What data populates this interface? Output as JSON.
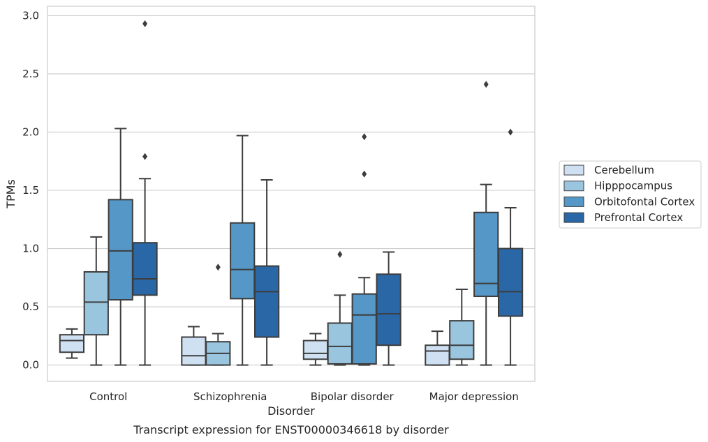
{
  "chart_data": {
    "type": "box",
    "caption": "Transcript expression for ENST00000346618 by disorder",
    "xlabel": "Disorder",
    "ylabel": "TPMs",
    "ylim": [
      -0.14,
      3.08
    ],
    "yticks": [
      0.0,
      0.5,
      1.0,
      1.5,
      2.0,
      2.5,
      3.0
    ],
    "ytick_labels": [
      "0.0",
      "0.5",
      "1.0",
      "1.5",
      "2.0",
      "2.5",
      "3.0"
    ],
    "grid": "horizontal",
    "legend_position": "right",
    "categories": [
      "Control",
      "Schizophrenia",
      "Bipolar disorder",
      "Major depression"
    ],
    "series": [
      {
        "name": "Cerebellum",
        "color": "#cfe0f2",
        "boxes": [
          {
            "whislo": 0.06,
            "q1": 0.11,
            "med": 0.21,
            "q3": 0.26,
            "whishi": 0.31,
            "fliers": []
          },
          {
            "whislo": 0.0,
            "q1": 0.0,
            "med": 0.08,
            "q3": 0.24,
            "whishi": 0.33,
            "fliers": []
          },
          {
            "whislo": 0.0,
            "q1": 0.05,
            "med": 0.1,
            "q3": 0.21,
            "whishi": 0.27,
            "fliers": []
          },
          {
            "whislo": 0.0,
            "q1": 0.0,
            "med": 0.12,
            "q3": 0.17,
            "whishi": 0.29,
            "fliers": []
          }
        ]
      },
      {
        "name": "Hipppocampus",
        "color": "#9ac5df",
        "boxes": [
          {
            "whislo": 0.0,
            "q1": 0.26,
            "med": 0.54,
            "q3": 0.8,
            "whishi": 1.1,
            "fliers": []
          },
          {
            "whislo": 0.0,
            "q1": 0.0,
            "med": 0.1,
            "q3": 0.2,
            "whishi": 0.27,
            "fliers": [
              0.84
            ]
          },
          {
            "whislo": 0.0,
            "q1": 0.01,
            "med": 0.16,
            "q3": 0.36,
            "whishi": 0.6,
            "fliers": [
              0.95
            ]
          },
          {
            "whislo": 0.0,
            "q1": 0.05,
            "med": 0.17,
            "q3": 0.38,
            "whishi": 0.65,
            "fliers": []
          }
        ]
      },
      {
        "name": "Orbitofontal Cortex",
        "color": "#5598c8",
        "boxes": [
          {
            "whislo": 0.0,
            "q1": 0.56,
            "med": 0.98,
            "q3": 1.42,
            "whishi": 2.03,
            "fliers": []
          },
          {
            "whislo": 0.0,
            "q1": 0.57,
            "med": 0.82,
            "q3": 1.22,
            "whishi": 1.97,
            "fliers": []
          },
          {
            "whislo": 0.0,
            "q1": 0.01,
            "med": 0.43,
            "q3": 0.61,
            "whishi": 0.75,
            "fliers": [
              1.64,
              1.96
            ]
          },
          {
            "whislo": 0.0,
            "q1": 0.59,
            "med": 0.7,
            "q3": 1.31,
            "whishi": 1.55,
            "fliers": [
              2.41
            ]
          }
        ]
      },
      {
        "name": "Prefrontal Cortex",
        "color": "#2a67a6",
        "boxes": [
          {
            "whislo": 0.0,
            "q1": 0.6,
            "med": 0.74,
            "q3": 1.05,
            "whishi": 1.6,
            "fliers": [
              1.79,
              2.93
            ]
          },
          {
            "whislo": 0.0,
            "q1": 0.24,
            "med": 0.63,
            "q3": 0.85,
            "whishi": 1.59,
            "fliers": []
          },
          {
            "whislo": 0.0,
            "q1": 0.17,
            "med": 0.44,
            "q3": 0.78,
            "whishi": 0.97,
            "fliers": []
          },
          {
            "whislo": 0.0,
            "q1": 0.42,
            "med": 0.63,
            "q3": 1.0,
            "whishi": 1.35,
            "fliers": [
              2.0
            ]
          }
        ]
      }
    ]
  }
}
